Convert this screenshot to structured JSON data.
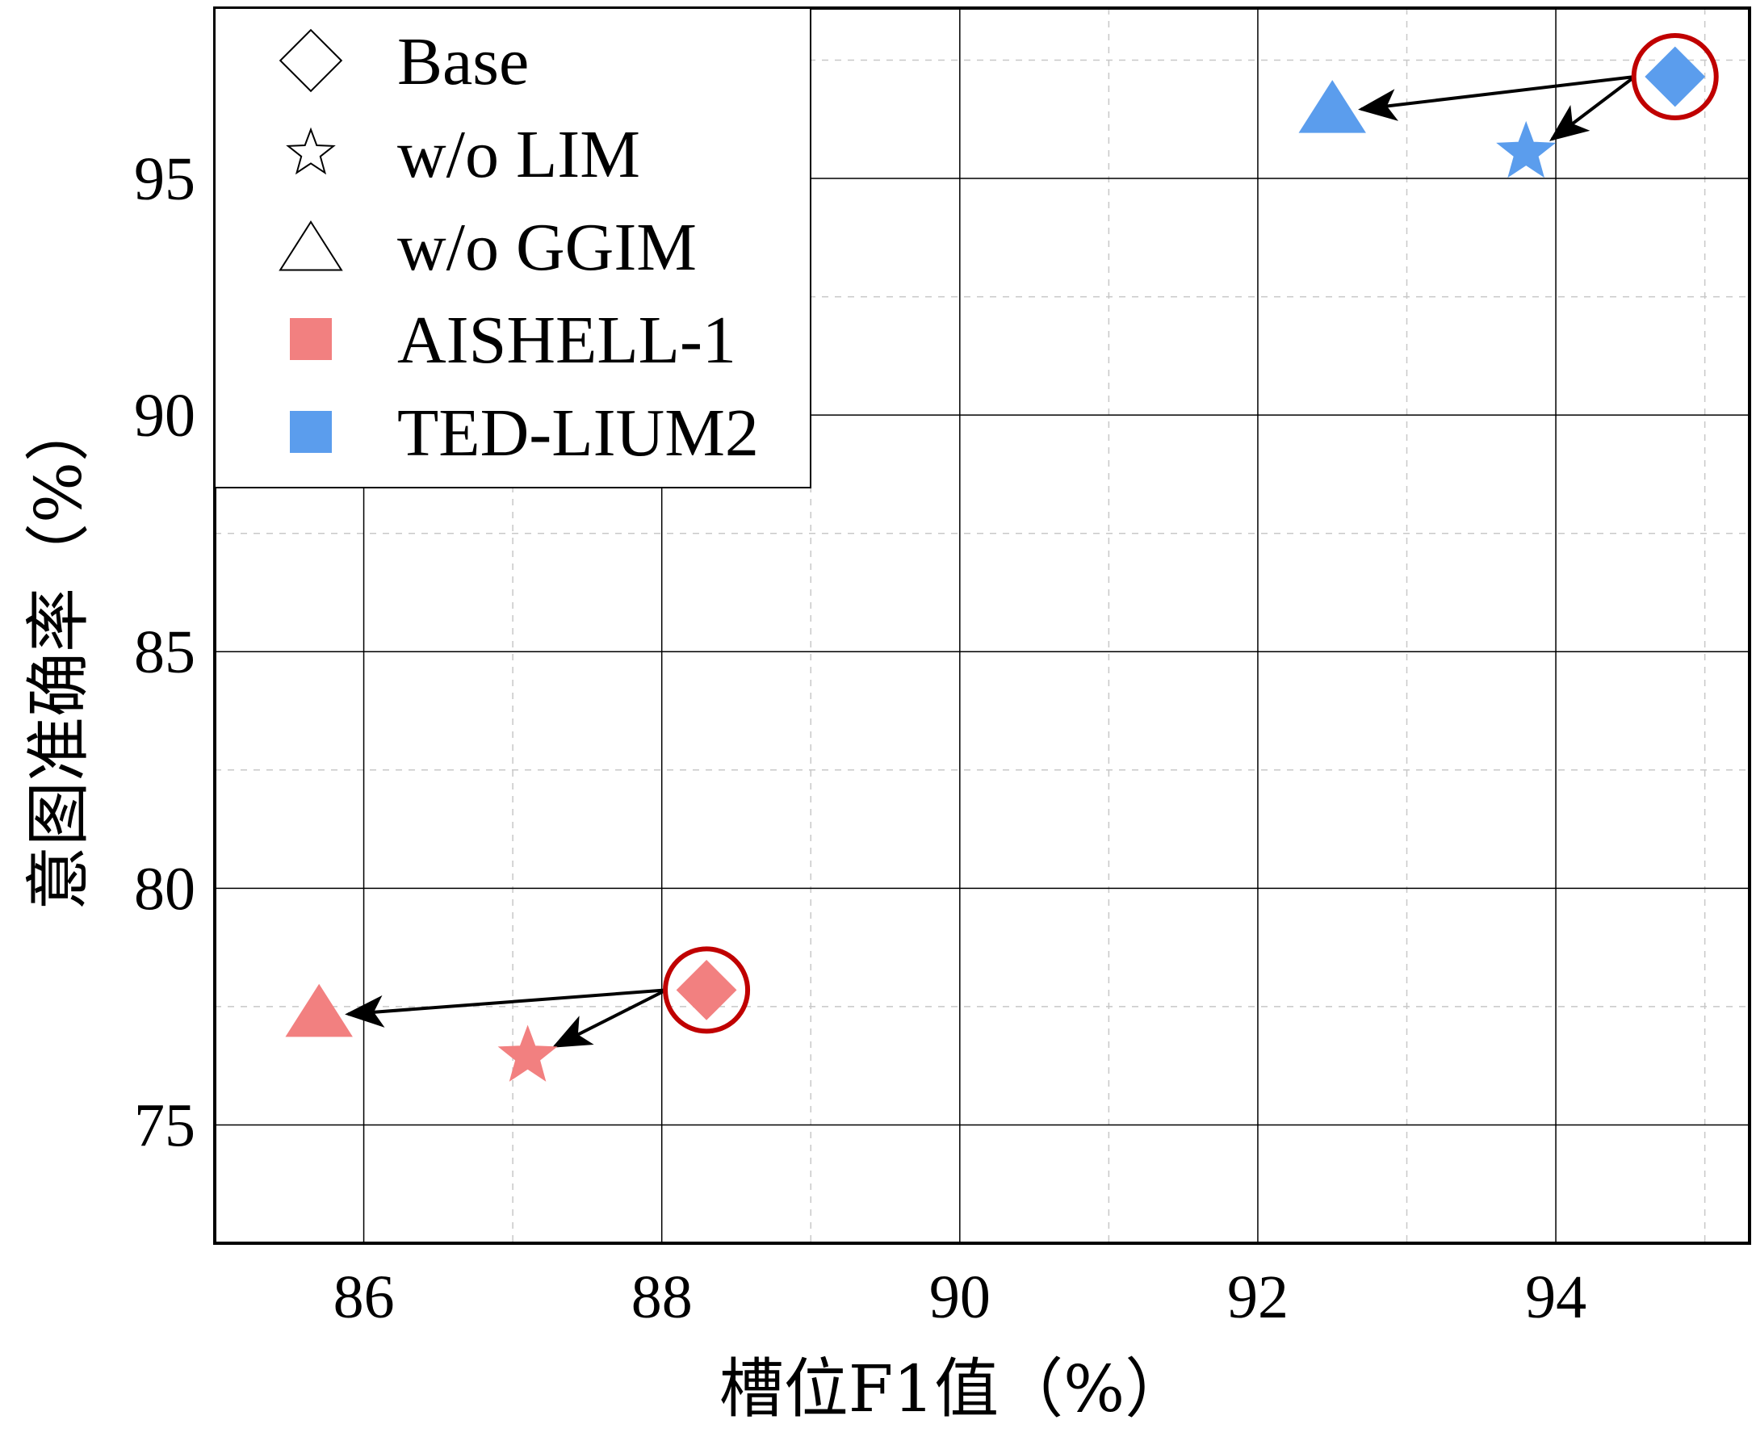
{
  "chart_data": {
    "type": "scatter",
    "xlabel": "槽位F1值（%）",
    "ylabel": "意图准确率（%）",
    "xlim": [
      85.0,
      95.3
    ],
    "ylim": [
      72.5,
      98.6
    ],
    "xticks": [
      86,
      88,
      90,
      92,
      94
    ],
    "yticks": [
      75,
      80,
      85,
      90,
      95
    ],
    "grid": "major solid, minor dashed",
    "legend_position": "top-left",
    "legend": [
      {
        "label": "Base",
        "marker": "diamond-outline"
      },
      {
        "label": "w/o LIM",
        "marker": "star-outline"
      },
      {
        "label": "w/o GGIM",
        "marker": "triangle-outline"
      },
      {
        "label": "AISHELL-1",
        "marker": "square",
        "color": "#f28080"
      },
      {
        "label": "TED-LIUM2",
        "marker": "square",
        "color": "#5b9ded"
      }
    ],
    "series": [
      {
        "name": "AISHELL-1",
        "color": "#f28080",
        "points": [
          {
            "variant": "Base",
            "marker": "diamond",
            "x": 88.3,
            "y": 77.85,
            "highlight": true
          },
          {
            "variant": "w/o LIM",
            "marker": "star",
            "x": 87.1,
            "y": 76.45
          },
          {
            "variant": "w/o GGIM",
            "marker": "triangle",
            "x": 85.7,
            "y": 77.3
          }
        ]
      },
      {
        "name": "TED-LIUM2",
        "color": "#5b9ded",
        "points": [
          {
            "variant": "Base",
            "marker": "diamond",
            "x": 94.8,
            "y": 97.15,
            "highlight": true
          },
          {
            "variant": "w/o LIM",
            "marker": "star",
            "x": 93.8,
            "y": 95.55
          },
          {
            "variant": "w/o GGIM",
            "marker": "triangle",
            "x": 92.5,
            "y": 96.4
          }
        ]
      }
    ],
    "highlight_color": "#c00000"
  }
}
